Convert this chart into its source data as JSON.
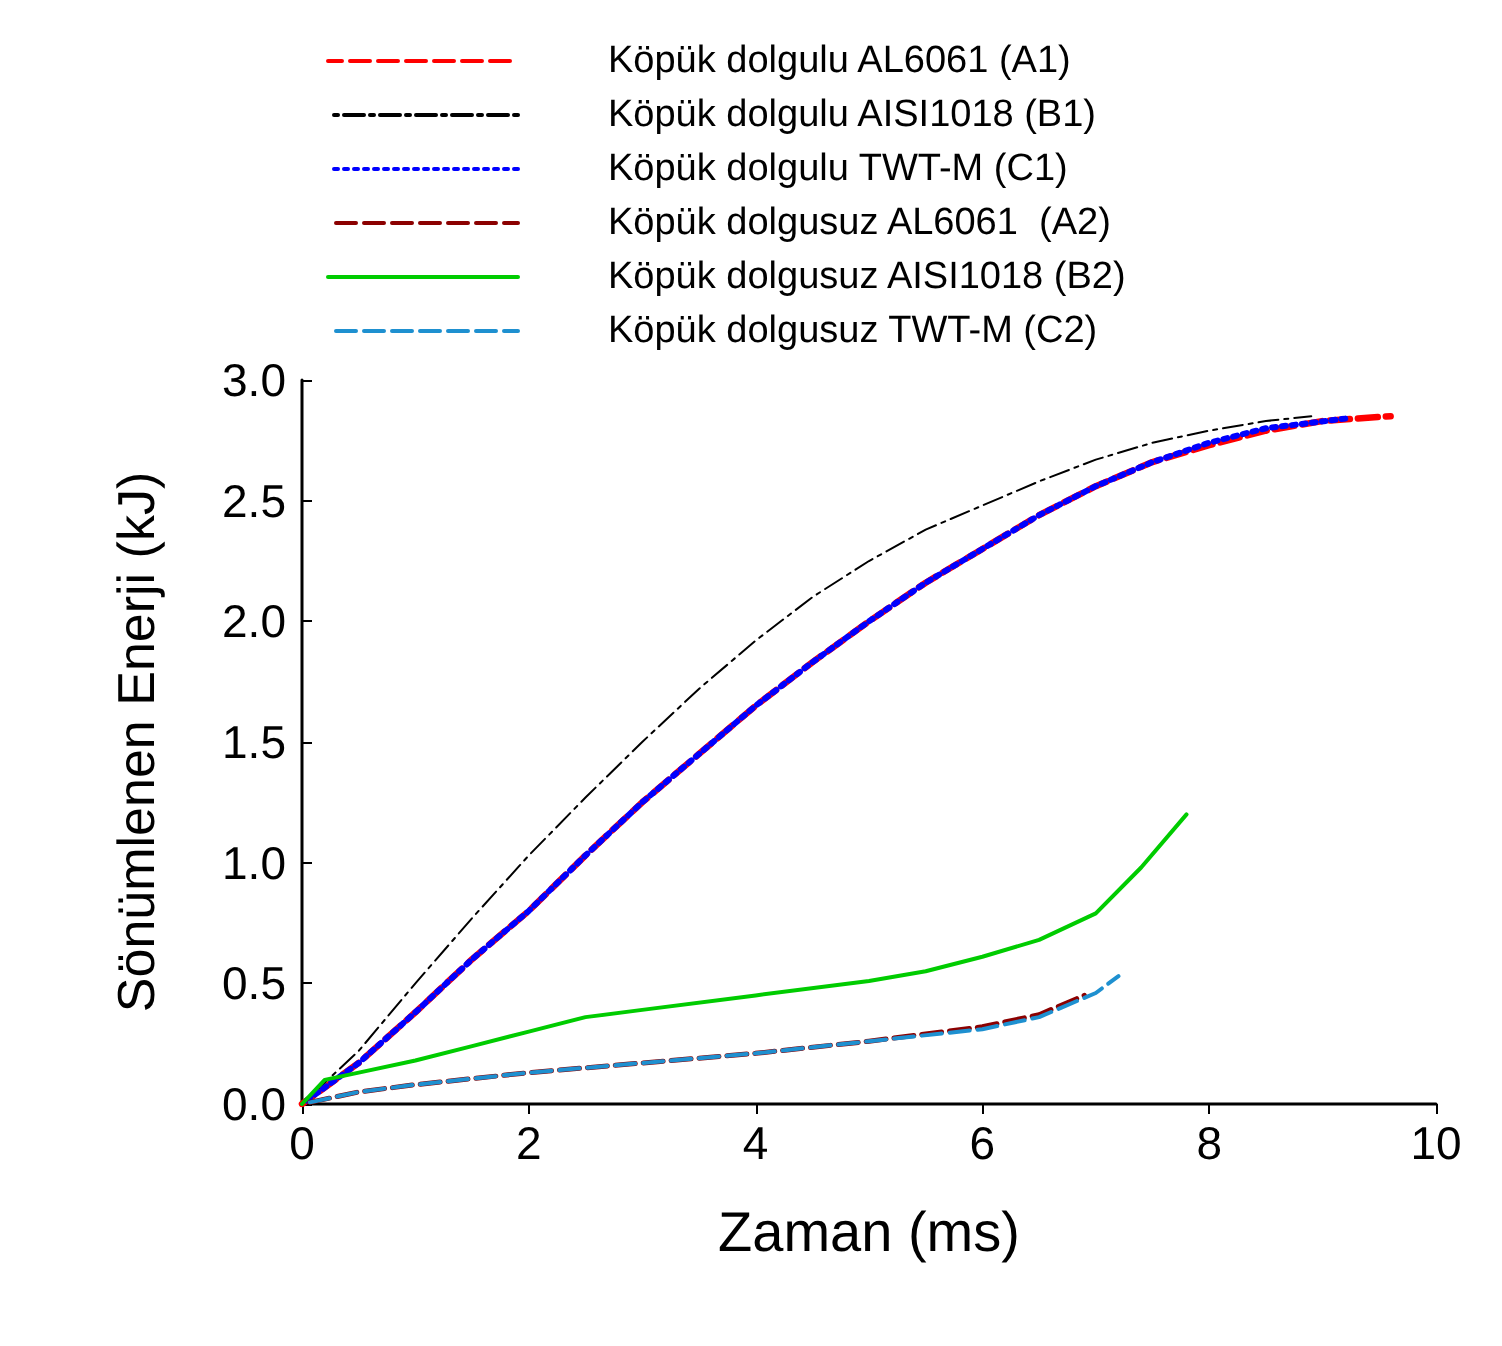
{
  "chart_data": {
    "type": "line",
    "xlabel": "Zaman (ms)",
    "ylabel": "Sönümlenen Enerji (kJ)",
    "xlim": [
      0,
      10
    ],
    "xticks": [
      0,
      2,
      4,
      6,
      8,
      10
    ],
    "ylim": [
      0,
      3
    ],
    "yticks": [
      {
        "value": 0,
        "label": "0.0"
      },
      {
        "value": 0.5,
        "label": "0.5"
      },
      {
        "value": 1,
        "label": "1.0"
      },
      {
        "value": 1.5,
        "label": "1.5"
      },
      {
        "value": 2,
        "label": "2.0"
      },
      {
        "value": 2.5,
        "label": "2.5"
      },
      {
        "value": 3,
        "label": "3.0"
      }
    ],
    "grid": false,
    "legend": "top",
    "marker": "none",
    "series": [
      {
        "name": "Köpük dolgulu AL6061 (A1)",
        "color": "#ff0000",
        "line_style": "dashed",
        "x": [
          0,
          0.5,
          1,
          1.5,
          2,
          2.5,
          3,
          3.5,
          4,
          4.5,
          5,
          5.5,
          6,
          6.5,
          7,
          7.5,
          8,
          8.5,
          9,
          9.6
        ],
        "values": [
          0,
          0.17,
          0.38,
          0.6,
          0.8,
          1.03,
          1.25,
          1.45,
          1.65,
          1.83,
          2.0,
          2.16,
          2.3,
          2.44,
          2.56,
          2.66,
          2.73,
          2.79,
          2.83,
          2.85
        ]
      },
      {
        "name": "Köpük dolgulu AISI1018 (B1)",
        "color": "#000000",
        "line_style": "dashdot",
        "x": [
          0,
          0.5,
          1,
          1.5,
          2,
          2.5,
          3,
          3.5,
          4,
          4.5,
          5,
          5.5,
          6,
          6.5,
          7,
          7.5,
          8,
          8.5,
          8.9
        ],
        "values": [
          0,
          0.22,
          0.5,
          0.77,
          1.03,
          1.27,
          1.5,
          1.72,
          1.92,
          2.1,
          2.25,
          2.38,
          2.48,
          2.58,
          2.67,
          2.74,
          2.79,
          2.83,
          2.85
        ]
      },
      {
        "name": "Köpük dolgulu TWT-M (C1)",
        "color": "#0000ff",
        "line_style": "dotted",
        "x": [
          0,
          0.5,
          1,
          1.5,
          2,
          2.5,
          3,
          3.5,
          4,
          4.5,
          5,
          5.5,
          6,
          6.5,
          7,
          7.5,
          8,
          8.5,
          9.2
        ],
        "values": [
          0,
          0.17,
          0.38,
          0.6,
          0.8,
          1.03,
          1.25,
          1.45,
          1.65,
          1.83,
          2.0,
          2.16,
          2.3,
          2.44,
          2.56,
          2.66,
          2.74,
          2.8,
          2.84
        ]
      },
      {
        "name": "Köpük dolgusuz AL6061  (A2)",
        "color": "#8b0000",
        "line_style": "dashed",
        "x": [
          0,
          0.5,
          1,
          2,
          3,
          4,
          5,
          6,
          6.5,
          6.9
        ],
        "values": [
          0,
          0.05,
          0.08,
          0.13,
          0.17,
          0.21,
          0.26,
          0.32,
          0.37,
          0.45
        ]
      },
      {
        "name": "Köpük dolgusuz AISI1018 (B2)",
        "color": "#00cc00",
        "line_style": "solid",
        "x": [
          0,
          0.2,
          0.5,
          1,
          1.5,
          2,
          2.5,
          3,
          4,
          5,
          5.5,
          6,
          6.5,
          7,
          7.4,
          7.8
        ],
        "values": [
          0,
          0.1,
          0.13,
          0.18,
          0.24,
          0.3,
          0.36,
          0.39,
          0.45,
          0.51,
          0.55,
          0.61,
          0.68,
          0.79,
          0.98,
          1.2
        ]
      },
      {
        "name": "Köpük dolgusuz TWT-M (C2)",
        "color": "#1e90d0",
        "line_style": "dashed",
        "x": [
          0,
          0.5,
          1,
          2,
          3,
          4,
          5,
          6,
          6.5,
          7,
          7.2
        ],
        "values": [
          0,
          0.05,
          0.08,
          0.13,
          0.17,
          0.21,
          0.26,
          0.31,
          0.36,
          0.46,
          0.53
        ]
      }
    ]
  }
}
